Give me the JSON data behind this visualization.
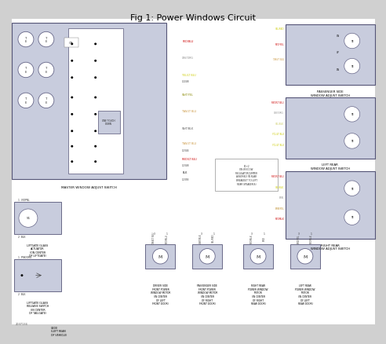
{
  "title": "Fig 1: Power Windows Circuit",
  "bg_color": "#d0d0d0",
  "switch_bg": "#c8ccdd",
  "title_fontsize": 8,
  "wire_colors": {
    "red": "#cc0000",
    "dark_red": "#880000",
    "yellow": "#cccc00",
    "yellow_green": "#aacc00",
    "green": "#009900",
    "light_green": "#66bb44",
    "blue": "#3355bb",
    "dark_blue": "#223388",
    "tan": "#cc9944",
    "gray": "#888888",
    "brown": "#885522",
    "black": "#111111",
    "white": "#ffffff"
  },
  "labels": {
    "passenger_switch": "PASSENGER SIDE\nWINDOW ADJUST SWITCH",
    "left_rear_switch": "LEFT REAR\nWINDOW ADJUST SWITCH",
    "right_rear_switch": "RIGHT REAR\nWINDOW ADJUST SWITCH",
    "master_switch": "MASTER WINDOW ADJUST SWITCH",
    "driver_motor": "DRIVER SIDE\nFRONT POWER\nWINDOW MOTOR\n(IN CENTER\nOF LEFT\nFRONT DOOR)",
    "passenger_motor": "PASSENGER SIDE\nFRONT POWER\nWINDOW MOTOR\n(IN CENTER\nOF RIGHT\nFRONT DOOR)",
    "right_rear_motor": "RIGHT REAR\nPOWER WINDOW\nMOTOR\n(IN CENTER\nOF RIGHT\nREAR DOOR)",
    "left_rear_motor": "LEFT REAR\nPOWER WINDOW\nMOTOR\n(IN CENTER\nOF LEFT\nREAR DOOR)",
    "liftgate_open": "LIFTGATE GLASS\nACTUATOR\n(ON CENTER\nOF LIFTGATE)",
    "liftgate_release": "LIFTGATE GLASS\nRELEASE SWITCH\n(IN CENTER\nOF TAILGATE)",
    "ground": "G400\n(LEFT REAR\nOF VEHICLE)"
  },
  "source": "2037134"
}
